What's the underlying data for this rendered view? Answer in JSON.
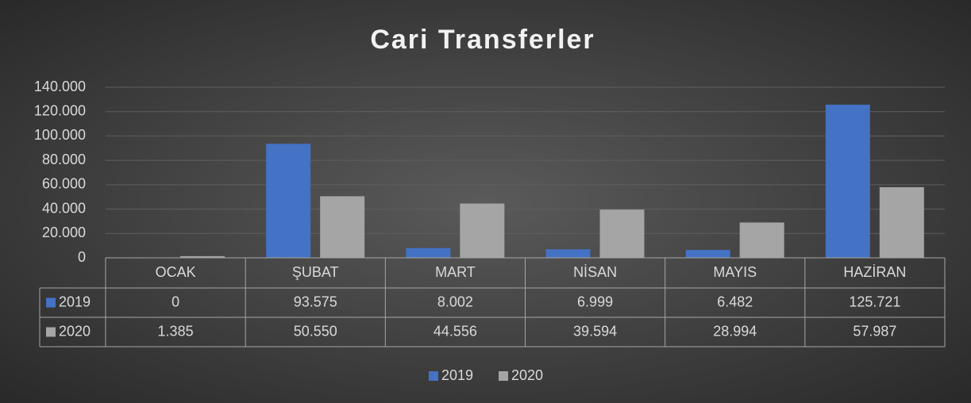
{
  "chart_data": {
    "type": "bar",
    "title": "Cari Transferler",
    "categories": [
      "OCAK",
      "ŞUBAT",
      "MART",
      "NİSAN",
      "MAYIS",
      "HAZİRAN"
    ],
    "series": [
      {
        "name": "2019",
        "color": "#4472c4",
        "values": [
          0,
          93575,
          8002,
          6999,
          6482,
          125721
        ],
        "value_labels": [
          "0",
          "93.575",
          "8.002",
          "6.999",
          "6.482",
          "125.721"
        ]
      },
      {
        "name": "2020",
        "color": "#a5a5a5",
        "values": [
          1385,
          50550,
          44556,
          39594,
          28994,
          57987
        ],
        "value_labels": [
          "1.385",
          "50.550",
          "44.556",
          "39.594",
          "28.994",
          "57.987"
        ]
      }
    ],
    "ylim": [
      0,
      140000
    ],
    "yticks": [
      0,
      {
        "value": 20000,
        "label": "20.000"
      },
      {
        "value": 40000,
        "label": "40.000"
      },
      {
        "value": 60000,
        "label": "60.000"
      },
      {
        "value": 80000,
        "label": "80.000"
      },
      {
        "value": 100000,
        "label": "100.000"
      },
      {
        "value": 120000,
        "label": "120.000"
      },
      {
        "value": 140000,
        "label": "140.000"
      }
    ],
    "grid": true,
    "legend": "bottom"
  }
}
